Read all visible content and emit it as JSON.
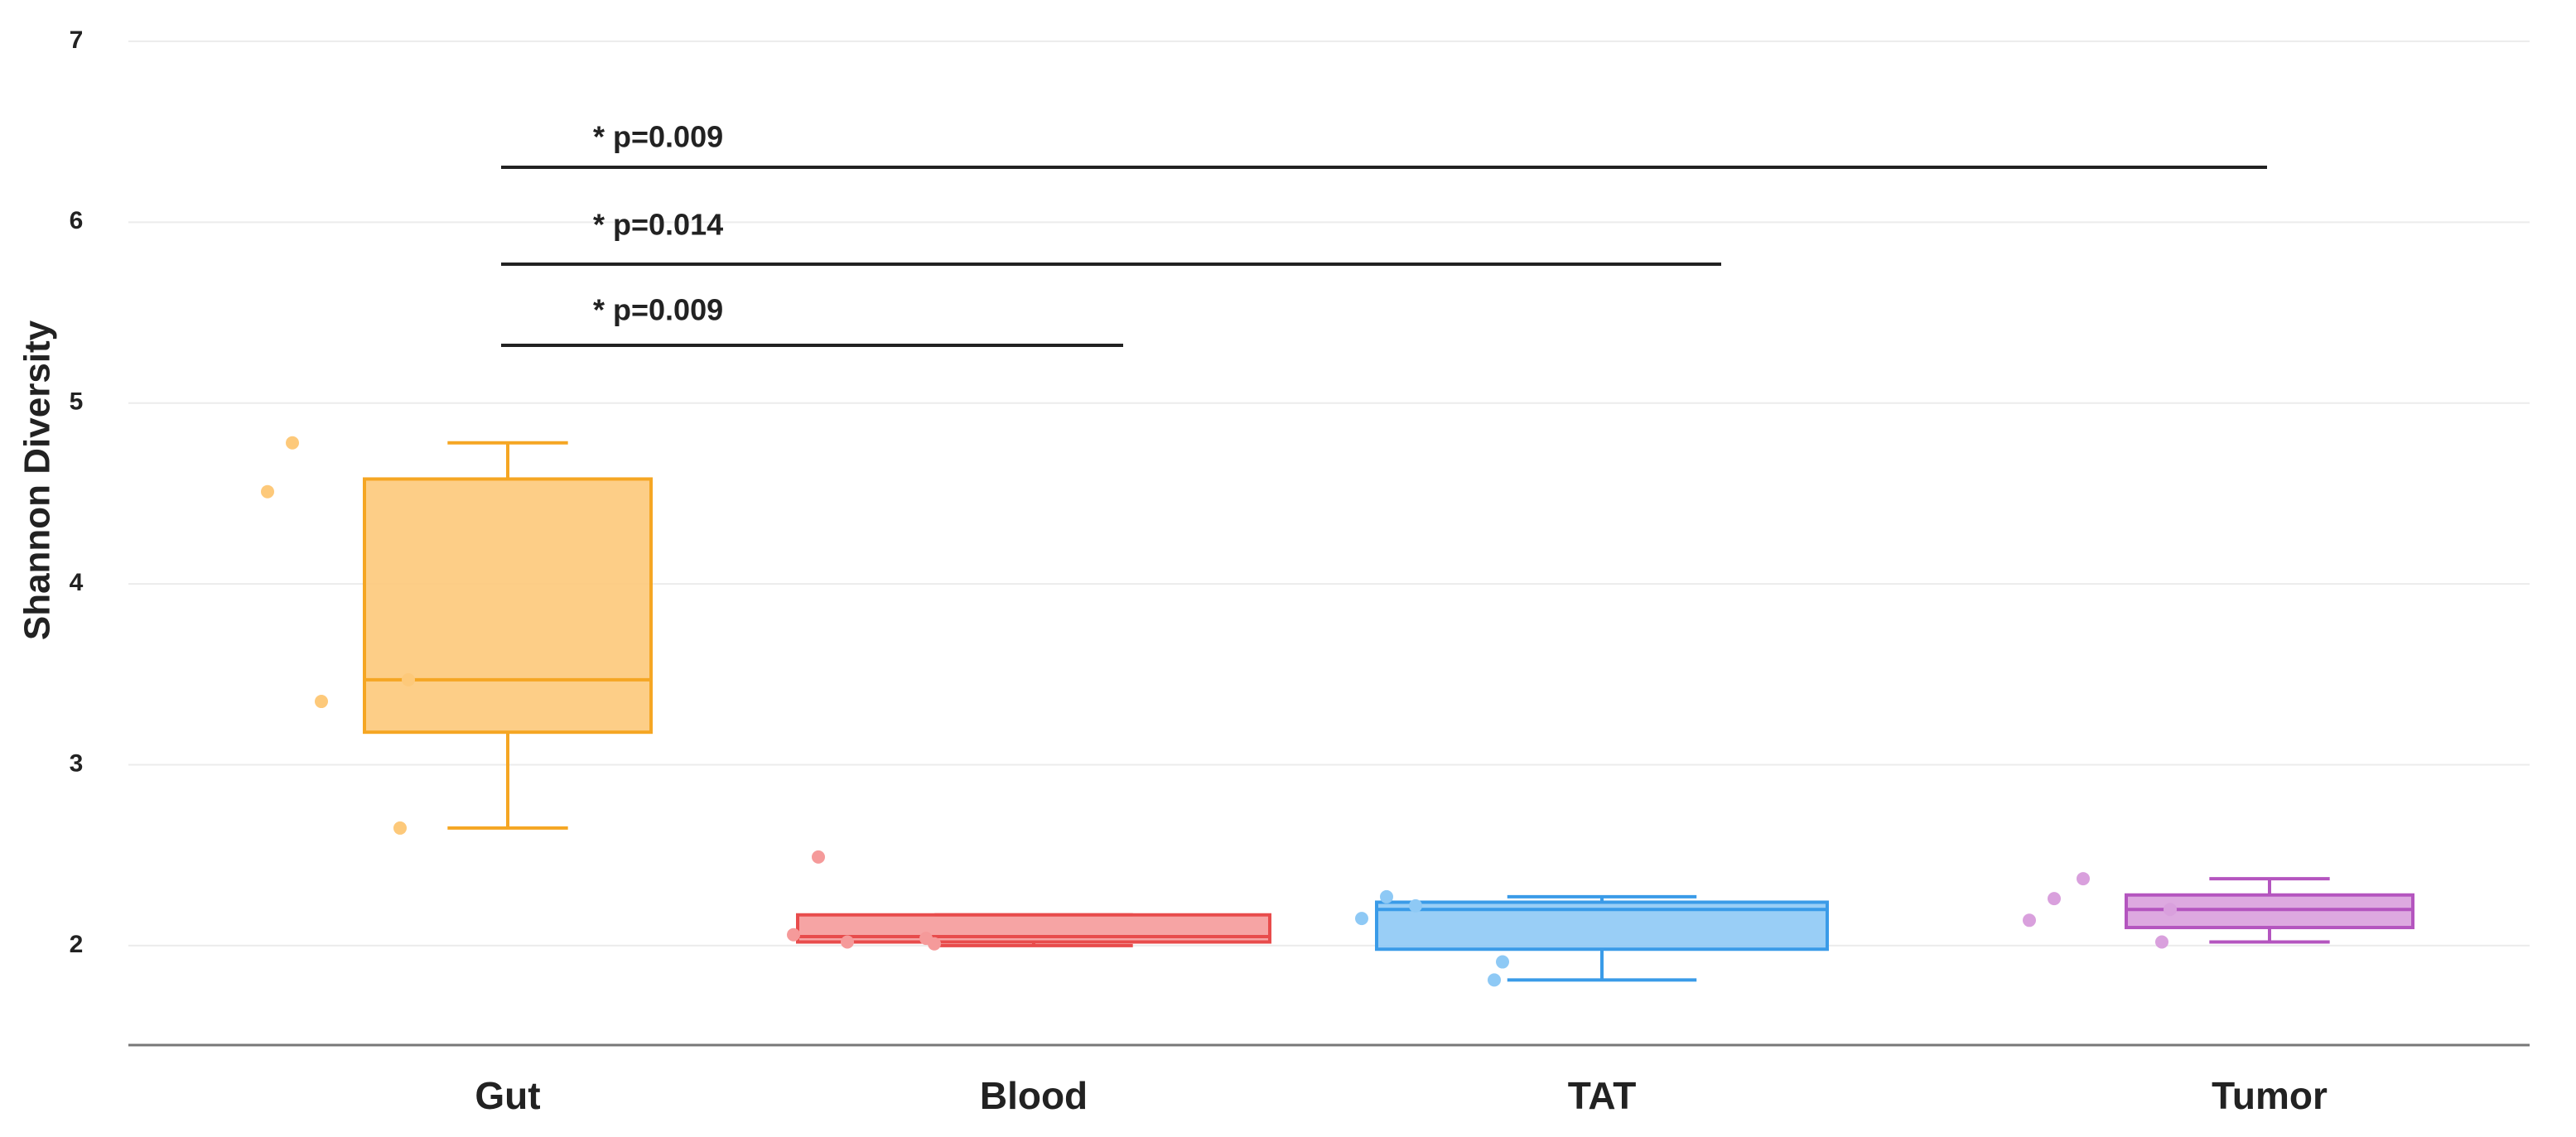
{
  "chart_data": {
    "type": "box",
    "ylabel": "Shannon Diversity",
    "categories": [
      "Gut",
      "Blood",
      "TAT",
      "Tumor"
    ],
    "boxes": [
      {
        "low": 2.65,
        "q1": 3.18,
        "median": 3.47,
        "q3": 4.58,
        "high": 4.78,
        "points": [
          4.78,
          4.51,
          3.35,
          3.47,
          2.65
        ],
        "color": "#f5a623",
        "fill": "#fdc97a"
      },
      {
        "low": 2.0,
        "q1": 2.02,
        "median": 2.05,
        "q3": 2.17,
        "high": 2.17,
        "points": [
          2.49,
          2.06,
          2.02,
          2.01,
          2.04
        ],
        "color": "#e84c4c",
        "fill": "#f59a9a"
      },
      {
        "low": 1.81,
        "q1": 1.98,
        "median": 2.2,
        "q3": 2.24,
        "high": 2.27,
        "points": [
          2.27,
          2.15,
          2.22,
          1.91,
          1.81
        ],
        "color": "#3a9be8",
        "fill": "#8ec9f5"
      },
      {
        "low": 2.02,
        "q1": 2.1,
        "median": 2.2,
        "q3": 2.28,
        "high": 2.37,
        "points": [
          2.26,
          2.14,
          2.37,
          2.2,
          2.02
        ],
        "color": "#b455bf",
        "fill": "#d9a0dd"
      }
    ],
    "annotations": [
      "* p=0.009",
      "* p=0.014",
      "* p=0.009"
    ],
    "ylim": [
      1.45,
      7.05
    ],
    "yticks": [
      2,
      3,
      4,
      5,
      6,
      7
    ],
    "grid": true
  }
}
